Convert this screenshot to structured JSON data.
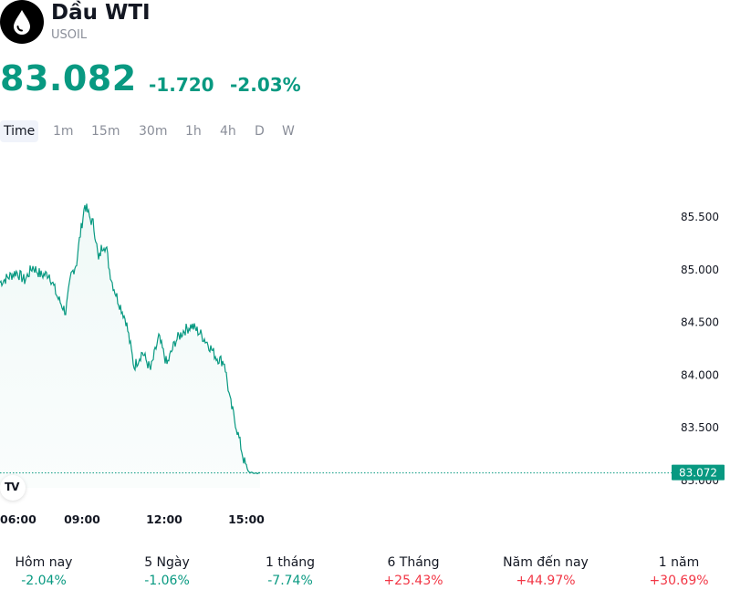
{
  "header": {
    "title": "Dầu WTI",
    "symbol": "USOIL",
    "logo_icon": "oil-drop-icon"
  },
  "quote": {
    "price": "83.082",
    "change": "-1.720",
    "change_percent": "-2.03%",
    "color": "#089981"
  },
  "timeframes": [
    "Time",
    "1m",
    "15m",
    "30m",
    "1h",
    "4h",
    "D",
    "W"
  ],
  "selected_timeframe": "Time",
  "chart_data": {
    "type": "area",
    "symbol": "USOIL",
    "color": "#089981",
    "y_ticks": [
      "85.500",
      "85.000",
      "84.500",
      "84.000",
      "83.500",
      "83.000"
    ],
    "ylim": [
      82.93,
      85.83
    ],
    "x_ticks": [
      "06:00",
      "09:00",
      "12:00",
      "15:00"
    ],
    "last_value_label": "83.072",
    "last_value": 83.072,
    "series": [
      {
        "x": [
          0,
          0.3,
          0.6,
          0.9,
          1.2,
          1.5,
          1.8,
          2.1,
          2.4,
          2.6,
          2.8,
          2.9,
          3.0,
          3.1,
          3.2,
          3.3,
          3.4,
          3.5,
          3.6,
          3.7,
          3.8,
          3.9,
          4.0,
          4.1,
          4.3,
          4.6,
          4.9,
          5.2,
          5.5,
          5.8,
          6.1,
          6.4,
          6.7,
          7.0,
          7.3,
          7.6,
          7.9,
          8.2,
          8.4,
          8.6,
          8.8,
          8.9,
          9.0,
          9.1,
          9.2,
          9.3,
          9.4,
          9.5
        ],
        "values": [
          84.88,
          84.93,
          84.98,
          84.9,
          85.03,
          84.95,
          84.96,
          84.74,
          84.6,
          84.95,
          85.07,
          85.28,
          85.45,
          85.62,
          85.55,
          85.48,
          85.44,
          85.3,
          85.08,
          85.2,
          85.25,
          85.18,
          85.0,
          84.88,
          84.72,
          84.52,
          84.08,
          84.22,
          84.05,
          84.36,
          84.1,
          84.32,
          84.42,
          84.47,
          84.4,
          84.3,
          84.17,
          84.12,
          83.76,
          83.55,
          83.32,
          83.2,
          83.12,
          83.08,
          83.07,
          83.07,
          83.07,
          83.07
        ]
      }
    ]
  },
  "performance": [
    {
      "label": "Hôm nay",
      "value": "-2.04%",
      "direction": "down"
    },
    {
      "label": "5 Ngày",
      "value": "-1.06%",
      "direction": "down"
    },
    {
      "label": "1 tháng",
      "value": "-7.74%",
      "direction": "down"
    },
    {
      "label": "6 Tháng",
      "value": "+25.43%",
      "direction": "up"
    },
    {
      "label": "Năm đến nay",
      "value": "+44.97%",
      "direction": "up"
    },
    {
      "label": "1 năm",
      "value": "+30.69%",
      "direction": "up"
    }
  ],
  "colors": {
    "down": "#089981",
    "up": "#f23645"
  }
}
